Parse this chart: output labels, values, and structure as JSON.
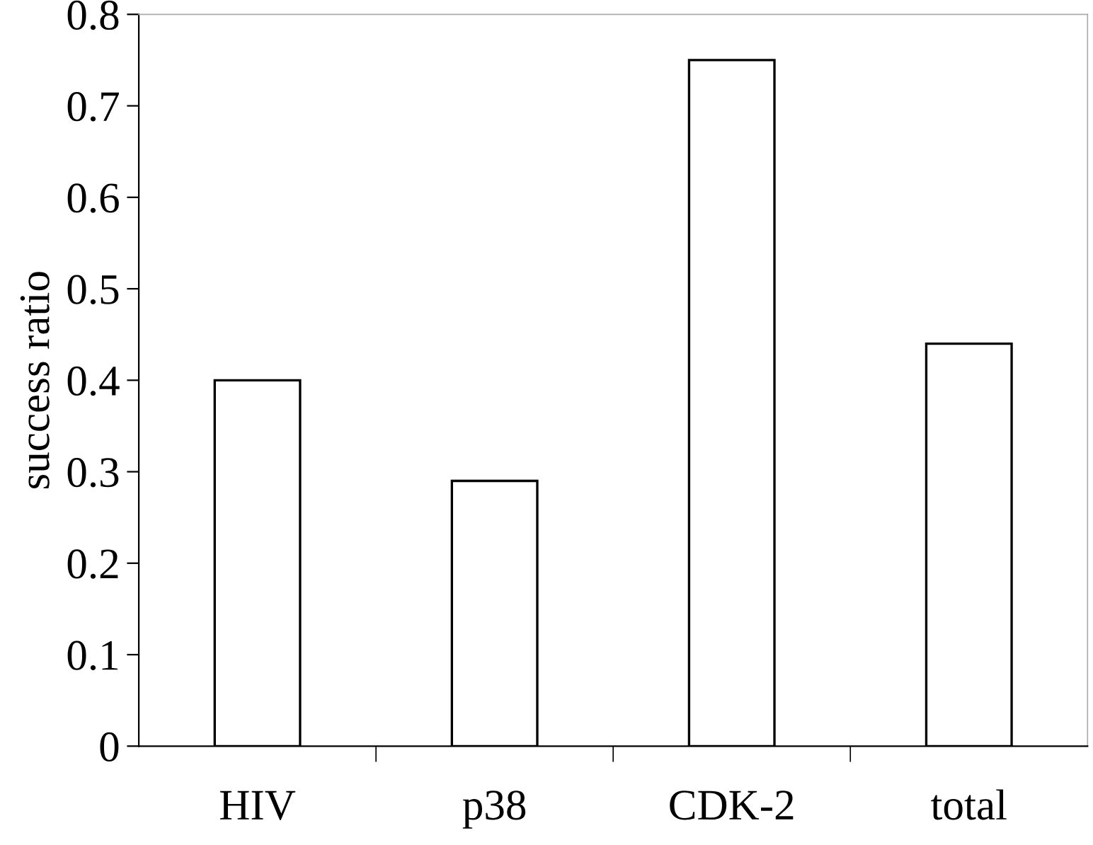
{
  "chart_data": {
    "type": "bar",
    "ylabel": "success ratio",
    "categories": [
      "HIV",
      "p38",
      "CDK-2",
      "total"
    ],
    "values": [
      0.4,
      0.29,
      0.75,
      0.44
    ],
    "color": "#ffffff",
    "ylim": [
      0,
      0.8
    ],
    "yticks": [
      0,
      0.1,
      0.2,
      0.3,
      0.4,
      0.5,
      0.6,
      0.7,
      0.8
    ],
    "grid": false,
    "legend": false
  }
}
